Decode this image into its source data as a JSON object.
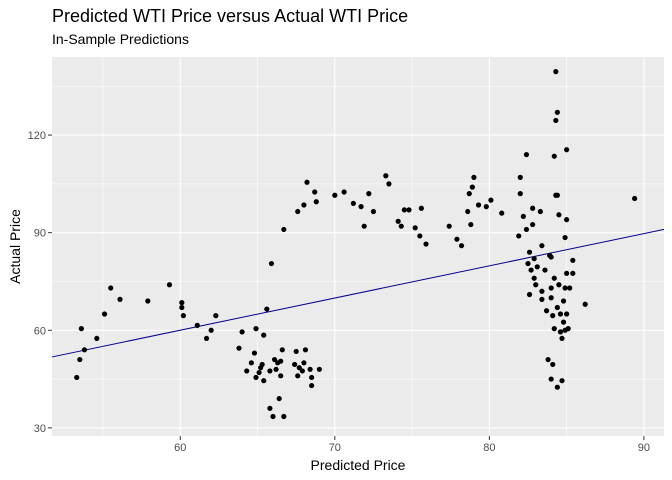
{
  "chart_data": {
    "type": "scatter",
    "title": "Predicted WTI Price versus Actual WTI Price",
    "subtitle": "In-Sample Predictions",
    "xlabel": "Predicted Price",
    "ylabel": "Actual Price",
    "xlim": [
      51.7,
      91.3
    ],
    "ylim": [
      27.5,
      144
    ],
    "xticks": [
      60,
      70,
      80,
      90
    ],
    "yticks": [
      30,
      60,
      90,
      120
    ],
    "grid": true,
    "fit_line": {
      "x": [
        51.7,
        91.3
      ],
      "y": [
        51.8,
        91.0
      ]
    },
    "colors": {
      "panel": "#ebebeb",
      "grid_major": "#ffffff",
      "point": "#000000",
      "fit_line": "#00008b"
    },
    "points": [
      [
        53.3,
        45.5
      ],
      [
        53.5,
        51.0
      ],
      [
        53.6,
        60.5
      ],
      [
        53.8,
        54.0
      ],
      [
        54.6,
        57.5
      ],
      [
        55.1,
        65.0
      ],
      [
        55.5,
        73.0
      ],
      [
        56.1,
        69.5
      ],
      [
        57.9,
        69.0
      ],
      [
        59.3,
        74.0
      ],
      [
        60.1,
        68.5
      ],
      [
        60.1,
        67.0
      ],
      [
        60.2,
        64.5
      ],
      [
        61.1,
        61.5
      ],
      [
        61.7,
        57.5
      ],
      [
        62.0,
        60.0
      ],
      [
        62.3,
        64.5
      ],
      [
        63.8,
        54.5
      ],
      [
        64.0,
        59.5
      ],
      [
        64.3,
        47.5
      ],
      [
        64.6,
        50.0
      ],
      [
        64.8,
        53.0
      ],
      [
        64.9,
        45.5
      ],
      [
        64.9,
        60.5
      ],
      [
        65.1,
        47.0
      ],
      [
        65.2,
        48.5
      ],
      [
        65.3,
        49.5
      ],
      [
        65.4,
        44.5
      ],
      [
        65.4,
        58.5
      ],
      [
        65.6,
        66.5
      ],
      [
        65.8,
        47.5
      ],
      [
        65.8,
        36.0
      ],
      [
        65.9,
        80.5
      ],
      [
        66.0,
        33.5
      ],
      [
        66.1,
        51.0
      ],
      [
        66.2,
        48.0
      ],
      [
        66.3,
        50.0
      ],
      [
        66.4,
        39.0
      ],
      [
        66.5,
        50.5
      ],
      [
        66.5,
        46.0
      ],
      [
        66.6,
        54.0
      ],
      [
        66.7,
        33.5
      ],
      [
        66.7,
        91.0
      ],
      [
        67.4,
        49.5
      ],
      [
        67.5,
        53.5
      ],
      [
        67.6,
        46.0
      ],
      [
        67.6,
        96.5
      ],
      [
        67.7,
        48.5
      ],
      [
        67.9,
        47.5
      ],
      [
        68.0,
        50.0
      ],
      [
        68.0,
        98.5
      ],
      [
        68.1,
        54.0
      ],
      [
        68.2,
        105.5
      ],
      [
        68.4,
        48.0
      ],
      [
        68.5,
        43.0
      ],
      [
        68.5,
        45.5
      ],
      [
        68.7,
        102.5
      ],
      [
        68.8,
        99.5
      ],
      [
        69.0,
        48.0
      ],
      [
        70.0,
        101.5
      ],
      [
        70.6,
        102.5
      ],
      [
        71.2,
        99.0
      ],
      [
        71.7,
        98.0
      ],
      [
        71.9,
        92.0
      ],
      [
        72.2,
        102.0
      ],
      [
        72.5,
        96.5
      ],
      [
        73.3,
        107.5
      ],
      [
        73.5,
        105.0
      ],
      [
        74.1,
        93.5
      ],
      [
        74.3,
        92.0
      ],
      [
        74.5,
        97.0
      ],
      [
        74.8,
        97.0
      ],
      [
        75.2,
        91.5
      ],
      [
        75.5,
        89.0
      ],
      [
        75.6,
        97.5
      ],
      [
        75.9,
        86.5
      ],
      [
        77.4,
        92.0
      ],
      [
        77.9,
        88.0
      ],
      [
        78.2,
        86.0
      ],
      [
        78.6,
        96.5
      ],
      [
        78.7,
        102.0
      ],
      [
        78.9,
        104.0
      ],
      [
        78.8,
        92.5
      ],
      [
        79.0,
        107.0
      ],
      [
        79.3,
        98.5
      ],
      [
        79.8,
        98.0
      ],
      [
        80.1,
        100.0
      ],
      [
        80.8,
        96.0
      ],
      [
        81.9,
        89.0
      ],
      [
        82.0,
        107.0
      ],
      [
        82.0,
        102.0
      ],
      [
        82.2,
        95.0
      ],
      [
        82.4,
        91.0
      ],
      [
        82.4,
        114.0
      ],
      [
        82.5,
        80.5
      ],
      [
        82.6,
        84.0
      ],
      [
        82.6,
        71.0
      ],
      [
        82.7,
        78.5
      ],
      [
        82.8,
        97.5
      ],
      [
        82.8,
        92.5
      ],
      [
        82.9,
        76.0
      ],
      [
        82.9,
        82.0
      ],
      [
        83.0,
        74.0
      ],
      [
        83.1,
        79.5
      ],
      [
        83.3,
        96.5
      ],
      [
        83.4,
        86.0
      ],
      [
        83.4,
        72.0
      ],
      [
        83.4,
        69.5
      ],
      [
        83.6,
        78.5
      ],
      [
        83.7,
        66.0
      ],
      [
        83.8,
        51.0
      ],
      [
        83.9,
        83.0
      ],
      [
        84.0,
        82.5
      ],
      [
        84.0,
        73.0
      ],
      [
        84.0,
        70.0
      ],
      [
        84.0,
        45.0
      ],
      [
        84.1,
        49.5
      ],
      [
        84.1,
        64.5
      ],
      [
        84.2,
        76.0
      ],
      [
        84.2,
        60.5
      ],
      [
        84.2,
        113.5
      ],
      [
        84.3,
        101.5
      ],
      [
        84.3,
        124.5
      ],
      [
        84.3,
        139.5
      ],
      [
        84.4,
        101.5
      ],
      [
        84.4,
        127.0
      ],
      [
        84.4,
        42.5
      ],
      [
        84.4,
        67.0
      ],
      [
        84.5,
        74.0
      ],
      [
        84.5,
        95.5
      ],
      [
        84.6,
        65.0
      ],
      [
        84.6,
        59.5
      ],
      [
        84.7,
        57.5
      ],
      [
        84.7,
        44.5
      ],
      [
        84.8,
        62.5
      ],
      [
        84.8,
        69.0
      ],
      [
        84.9,
        88.5
      ],
      [
        84.9,
        73.0
      ],
      [
        84.9,
        60.0
      ],
      [
        85.0,
        94.0
      ],
      [
        85.0,
        77.5
      ],
      [
        85.0,
        115.5
      ],
      [
        85.0,
        65.0
      ],
      [
        85.1,
        60.5
      ],
      [
        85.2,
        73.0
      ],
      [
        85.4,
        77.5
      ],
      [
        85.4,
        81.5
      ],
      [
        86.2,
        68.0
      ],
      [
        89.4,
        100.5
      ]
    ]
  }
}
